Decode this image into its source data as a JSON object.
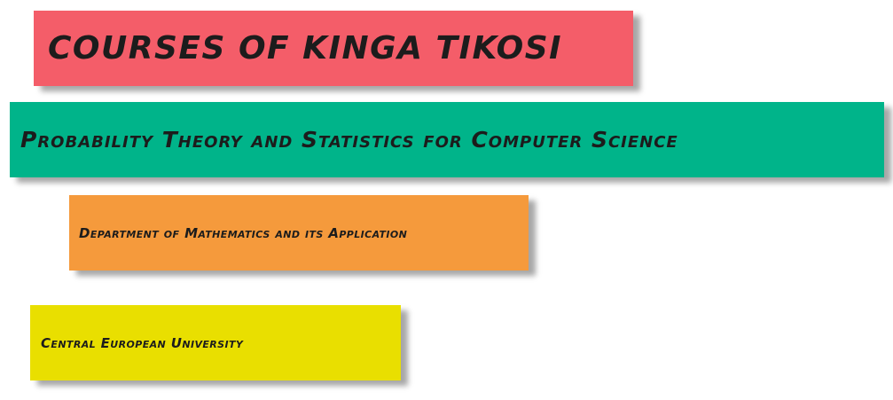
{
  "notes": [
    {
      "text": "COURSES OF KINGA TIKOSI",
      "color": "#f45d69"
    },
    {
      "text": "Probability Theory and Statistics for Computer Science",
      "color": "#00b48a"
    },
    {
      "text": "Department of Mathematics and its Application",
      "color": "#f59a3c"
    },
    {
      "text": "Central European University",
      "color": "#e9df00"
    }
  ]
}
